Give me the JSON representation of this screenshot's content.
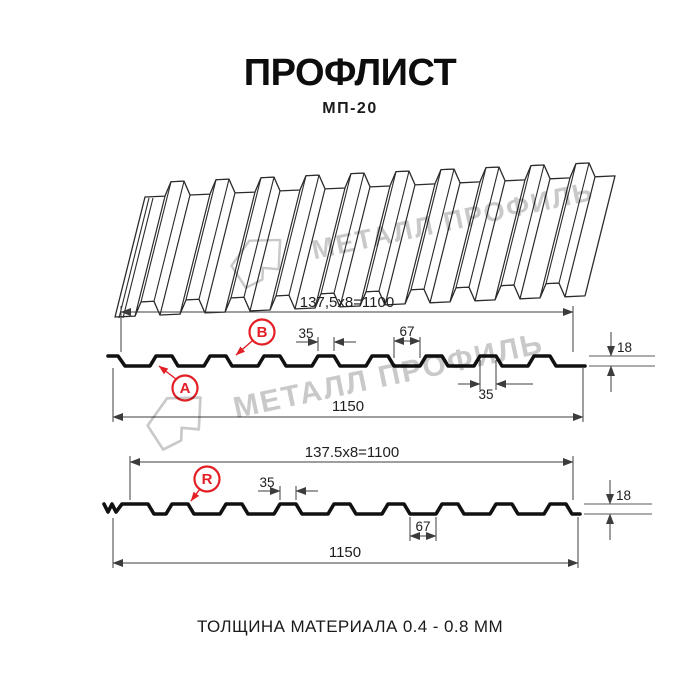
{
  "title": "ПРОФЛИСТ",
  "model": "МП-20",
  "footer": "ТОЛЩИНА МАТЕРИАЛА 0.4 - 0.8 ММ",
  "watermark": {
    "text": "МЕТАЛЛ ПРОФИЛЬ",
    "color": "#c9c9c9"
  },
  "colors": {
    "line": "#1a1a1a",
    "dim": "#3c3c3c",
    "red": "#e31e24"
  },
  "profile_top": {
    "coverage_width": "137,5x8=1100",
    "overall_width": "1150",
    "crest_width": "35",
    "valley_width": "67",
    "height": "18",
    "crest_width_bottom": "35",
    "side_a": "A",
    "side_b": "B"
  },
  "profile_bottom": {
    "coverage_width": "137.5x8=1100",
    "overall_width": "1150",
    "crest_width": "35",
    "valley_width": "67",
    "height": "18",
    "radius_label": "R"
  }
}
